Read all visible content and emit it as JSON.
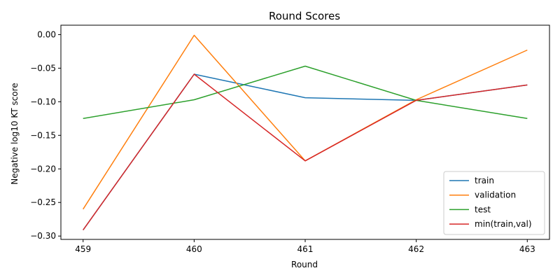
{
  "chart_data": {
    "type": "line",
    "title": "Round Scores",
    "xlabel": "Round",
    "ylabel": "Negative log10 KT score",
    "x": [
      459,
      460,
      461,
      462,
      463
    ],
    "x_tick_labels": [
      "459",
      "460",
      "461",
      "462",
      "463"
    ],
    "ylim": [
      -0.305,
      0.014
    ],
    "y_ticks": [
      0.0,
      -0.05,
      -0.1,
      -0.15,
      -0.2,
      -0.25,
      -0.3
    ],
    "y_tick_labels": [
      "0.00",
      "−0.05",
      "−0.10",
      "−0.15",
      "−0.20",
      "−0.25",
      "−0.30"
    ],
    "grid": false,
    "legend_position": "lower-right",
    "series": [
      {
        "name": "train",
        "color": "#1f77b4",
        "values": [
          -0.291,
          -0.059,
          -0.094,
          -0.098,
          -0.075
        ]
      },
      {
        "name": "validation",
        "color": "#ff7f0e",
        "values": [
          -0.26,
          -0.001,
          -0.188,
          -0.097,
          -0.023
        ]
      },
      {
        "name": "test",
        "color": "#2ca02c",
        "values": [
          -0.125,
          -0.097,
          -0.047,
          -0.098,
          -0.125
        ]
      },
      {
        "name": "min(train,val)",
        "color": "#d62728",
        "values": [
          -0.291,
          -0.059,
          -0.188,
          -0.098,
          -0.075
        ]
      }
    ]
  }
}
